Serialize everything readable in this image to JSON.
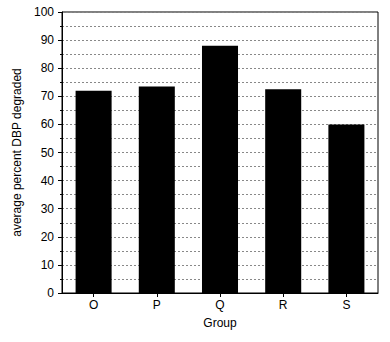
{
  "chart_data": {
    "type": "bar",
    "xlabel": "Group",
    "ylabel": "average percent DBP degraded",
    "categories": [
      "O",
      "P",
      "Q",
      "R",
      "S"
    ],
    "values": [
      72,
      73.5,
      88,
      72.5,
      60
    ],
    "color": "#000000",
    "ylim": [
      0,
      100
    ],
    "yticks": [
      0,
      10,
      20,
      30,
      40,
      50,
      60,
      70,
      80,
      90,
      100
    ],
    "grid": true
  }
}
